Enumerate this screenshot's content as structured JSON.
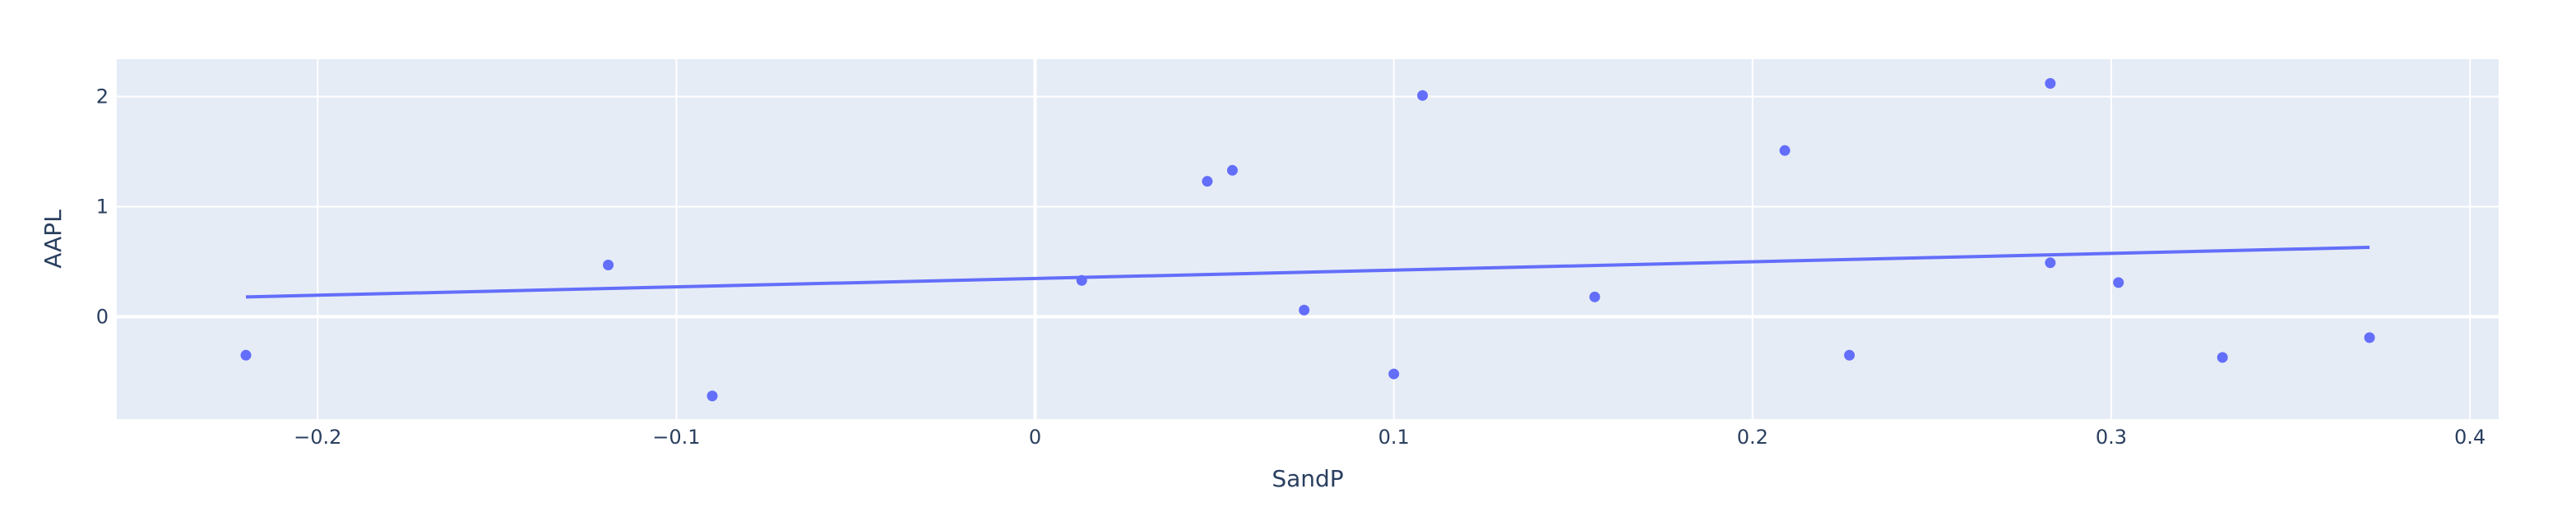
{
  "chart_data": {
    "type": "scatter",
    "title": "",
    "xlabel": "SandP",
    "ylabel": "AAPL",
    "xlim": [
      -0.256,
      0.408
    ],
    "ylim": [
      -0.93,
      2.34
    ],
    "x_ticks": [
      -0.2,
      -0.1,
      0,
      0.1,
      0.2,
      0.3,
      0.4
    ],
    "x_tick_labels": [
      "−0.2",
      "−0.1",
      "0",
      "0.1",
      "0.2",
      "0.3",
      "0.4"
    ],
    "y_ticks": [
      0,
      1,
      2
    ],
    "y_tick_labels": [
      "0",
      "1",
      "2"
    ],
    "grid": true,
    "legend": "none",
    "colors": {
      "plot_bg": "#e5ecf6",
      "grid": "#ffffff",
      "marker": "#636efa",
      "trendline": "#636efa",
      "text": "#2a3f5f"
    },
    "points": [
      {
        "x": -0.22,
        "y": -0.35
      },
      {
        "x": -0.119,
        "y": 0.47
      },
      {
        "x": -0.09,
        "y": -0.72
      },
      {
        "x": 0.013,
        "y": 0.33
      },
      {
        "x": 0.048,
        "y": 1.23
      },
      {
        "x": 0.055,
        "y": 1.33
      },
      {
        "x": 0.075,
        "y": 0.06
      },
      {
        "x": 0.1,
        "y": -0.52
      },
      {
        "x": 0.108,
        "y": 2.01
      },
      {
        "x": 0.156,
        "y": 0.18
      },
      {
        "x": 0.209,
        "y": 1.51
      },
      {
        "x": 0.227,
        "y": -0.35
      },
      {
        "x": 0.283,
        "y": 2.12
      },
      {
        "x": 0.283,
        "y": 0.49
      },
      {
        "x": 0.302,
        "y": 0.31
      },
      {
        "x": 0.331,
        "y": -0.37
      },
      {
        "x": 0.372,
        "y": -0.19
      }
    ],
    "trendline": {
      "x": [
        -0.22,
        0.372
      ],
      "y": [
        0.18,
        0.63
      ]
    }
  }
}
